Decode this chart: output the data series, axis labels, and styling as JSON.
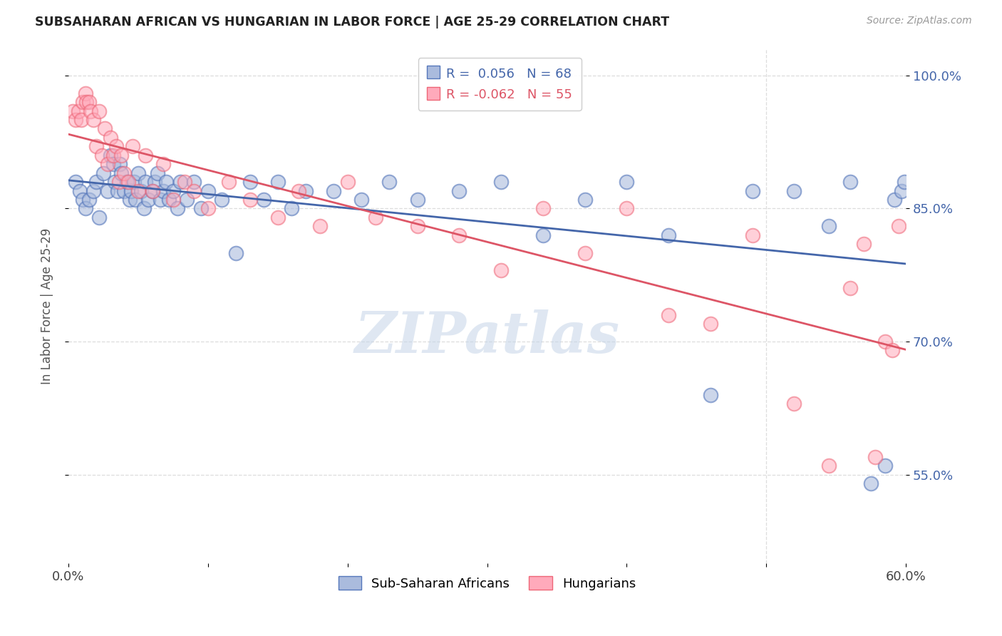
{
  "title": "SUBSAHARAN AFRICAN VS HUNGARIAN IN LABOR FORCE | AGE 25-29 CORRELATION CHART",
  "source": "Source: ZipAtlas.com",
  "ylabel": "In Labor Force | Age 25-29",
  "xlim": [
    0.0,
    0.6
  ],
  "ylim": [
    0.45,
    1.03
  ],
  "ytick_labels": [
    "55.0%",
    "70.0%",
    "85.0%",
    "100.0%"
  ],
  "ytick_values": [
    0.55,
    0.7,
    0.85,
    1.0
  ],
  "xtick_values": [
    0.0,
    0.1,
    0.2,
    0.3,
    0.4,
    0.5,
    0.6
  ],
  "blue_R": 0.056,
  "blue_N": 68,
  "pink_R": -0.062,
  "pink_N": 55,
  "blue_color": "#aabbdd",
  "pink_color": "#ffaabb",
  "blue_edge_color": "#5577bb",
  "pink_edge_color": "#ee6677",
  "blue_line_color": "#4466aa",
  "pink_line_color": "#dd5566",
  "watermark": "ZIPatlas",
  "legend_labels": [
    "Sub-Saharan Africans",
    "Hungarians"
  ],
  "blue_scatter_x": [
    0.005,
    0.008,
    0.01,
    0.012,
    0.015,
    0.018,
    0.02,
    0.022,
    0.025,
    0.028,
    0.03,
    0.032,
    0.033,
    0.035,
    0.037,
    0.038,
    0.04,
    0.042,
    0.044,
    0.045,
    0.047,
    0.048,
    0.05,
    0.052,
    0.054,
    0.055,
    0.057,
    0.06,
    0.062,
    0.064,
    0.066,
    0.068,
    0.07,
    0.072,
    0.075,
    0.078,
    0.08,
    0.085,
    0.09,
    0.095,
    0.1,
    0.11,
    0.12,
    0.13,
    0.14,
    0.15,
    0.16,
    0.17,
    0.19,
    0.21,
    0.23,
    0.25,
    0.28,
    0.31,
    0.34,
    0.37,
    0.4,
    0.43,
    0.46,
    0.49,
    0.52,
    0.545,
    0.56,
    0.575,
    0.585,
    0.592,
    0.597,
    0.599
  ],
  "blue_scatter_y": [
    0.88,
    0.87,
    0.86,
    0.85,
    0.86,
    0.87,
    0.88,
    0.84,
    0.89,
    0.87,
    0.91,
    0.9,
    0.88,
    0.87,
    0.9,
    0.89,
    0.87,
    0.88,
    0.86,
    0.87,
    0.88,
    0.86,
    0.89,
    0.87,
    0.85,
    0.88,
    0.86,
    0.87,
    0.88,
    0.89,
    0.86,
    0.87,
    0.88,
    0.86,
    0.87,
    0.85,
    0.88,
    0.86,
    0.88,
    0.85,
    0.87,
    0.86,
    0.8,
    0.88,
    0.86,
    0.88,
    0.85,
    0.87,
    0.87,
    0.86,
    0.88,
    0.86,
    0.87,
    0.88,
    0.82,
    0.86,
    0.88,
    0.82,
    0.64,
    0.87,
    0.87,
    0.83,
    0.88,
    0.54,
    0.56,
    0.86,
    0.87,
    0.88
  ],
  "pink_scatter_x": [
    0.003,
    0.005,
    0.007,
    0.009,
    0.01,
    0.012,
    0.013,
    0.015,
    0.016,
    0.018,
    0.02,
    0.022,
    0.024,
    0.026,
    0.028,
    0.03,
    0.032,
    0.034,
    0.036,
    0.038,
    0.04,
    0.043,
    0.046,
    0.05,
    0.055,
    0.06,
    0.068,
    0.075,
    0.083,
    0.09,
    0.1,
    0.115,
    0.13,
    0.15,
    0.165,
    0.18,
    0.2,
    0.22,
    0.25,
    0.28,
    0.31,
    0.34,
    0.37,
    0.4,
    0.43,
    0.46,
    0.49,
    0.52,
    0.545,
    0.56,
    0.57,
    0.578,
    0.585,
    0.59,
    0.595
  ],
  "pink_scatter_y": [
    0.96,
    0.95,
    0.96,
    0.95,
    0.97,
    0.98,
    0.97,
    0.97,
    0.96,
    0.95,
    0.92,
    0.96,
    0.91,
    0.94,
    0.9,
    0.93,
    0.91,
    0.92,
    0.88,
    0.91,
    0.89,
    0.88,
    0.92,
    0.87,
    0.91,
    0.87,
    0.9,
    0.86,
    0.88,
    0.87,
    0.85,
    0.88,
    0.86,
    0.84,
    0.87,
    0.83,
    0.88,
    0.84,
    0.83,
    0.82,
    0.78,
    0.85,
    0.8,
    0.85,
    0.73,
    0.72,
    0.82,
    0.63,
    0.56,
    0.76,
    0.81,
    0.57,
    0.7,
    0.69,
    0.83
  ]
}
